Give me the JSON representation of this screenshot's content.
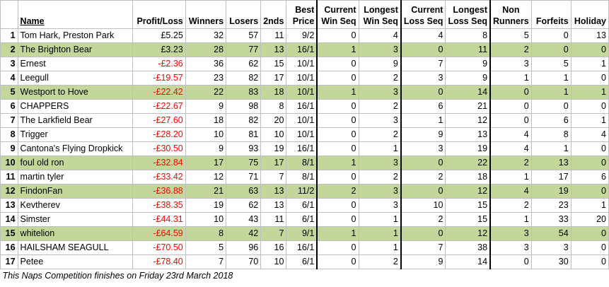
{
  "headers": {
    "rank": "",
    "name": "Name",
    "profit_loss": "Profit/Loss",
    "winners": "Winners",
    "losers": "Losers",
    "seconds": "2nds",
    "best_price": [
      "Best",
      "Price"
    ],
    "current_win_seq": [
      "Current",
      "Win Seq"
    ],
    "longest_win_seq": [
      "Longest",
      "Win Seq"
    ],
    "current_loss_seq": [
      "Current",
      "Loss Seq"
    ],
    "longest_loss_seq": [
      "Longest",
      "Loss Seq"
    ],
    "non_runners": [
      "Non",
      "Runners"
    ],
    "forfeits": "Forfeits",
    "holiday": "Holiday"
  },
  "rows": [
    {
      "rank": "1",
      "name": "Tom Hark, Preston Park",
      "pl": "£5.25",
      "winners": "32",
      "losers": "57",
      "seconds": "11",
      "best": "9/2",
      "cws": "0",
      "lws": "4",
      "cls": "4",
      "lls": "8",
      "nr": "5",
      "forfeits": "0",
      "holiday": "13",
      "highlight": false,
      "negative": false
    },
    {
      "rank": "2",
      "name": "The Brighton Bear",
      "pl": "£3.23",
      "winners": "28",
      "losers": "77",
      "seconds": "13",
      "best": "16/1",
      "cws": "1",
      "lws": "3",
      "cls": "0",
      "lls": "11",
      "nr": "2",
      "forfeits": "0",
      "holiday": "0",
      "highlight": true,
      "negative": false
    },
    {
      "rank": "3",
      "name": "Ernest",
      "pl": "-£2.36",
      "winners": "36",
      "losers": "62",
      "seconds": "15",
      "best": "10/1",
      "cws": "0",
      "lws": "9",
      "cls": "7",
      "lls": "9",
      "nr": "3",
      "forfeits": "5",
      "holiday": "1",
      "highlight": false,
      "negative": true
    },
    {
      "rank": "4",
      "name": "Leegull",
      "pl": "-£19.57",
      "winners": "23",
      "losers": "82",
      "seconds": "17",
      "best": "10/1",
      "cws": "0",
      "lws": "2",
      "cls": "3",
      "lls": "9",
      "nr": "1",
      "forfeits": "1",
      "holiday": "0",
      "highlight": false,
      "negative": true
    },
    {
      "rank": "5",
      "name": "Westport to Hove",
      "pl": "-£22.42",
      "winners": "22",
      "losers": "83",
      "seconds": "18",
      "best": "10/1",
      "cws": "1",
      "lws": "3",
      "cls": "0",
      "lls": "14",
      "nr": "0",
      "forfeits": "1",
      "holiday": "1",
      "highlight": true,
      "negative": true
    },
    {
      "rank": "6",
      "name": "CHAPPERS",
      "pl": "-£22.67",
      "winners": "9",
      "losers": "98",
      "seconds": "8",
      "best": "16/1",
      "cws": "0",
      "lws": "2",
      "cls": "6",
      "lls": "21",
      "nr": "0",
      "forfeits": "0",
      "holiday": "0",
      "highlight": false,
      "negative": true
    },
    {
      "rank": "7",
      "name": "The Larkfield Bear",
      "pl": "-£27.60",
      "winners": "18",
      "losers": "82",
      "seconds": "20",
      "best": "10/1",
      "cws": "0",
      "lws": "3",
      "cls": "1",
      "lls": "12",
      "nr": "0",
      "forfeits": "6",
      "holiday": "1",
      "highlight": false,
      "negative": true
    },
    {
      "rank": "8",
      "name": "Trigger",
      "pl": "-£28.20",
      "winners": "10",
      "losers": "81",
      "seconds": "10",
      "best": "10/1",
      "cws": "0",
      "lws": "2",
      "cls": "9",
      "lls": "13",
      "nr": "4",
      "forfeits": "8",
      "holiday": "4",
      "highlight": false,
      "negative": true
    },
    {
      "rank": "9",
      "name": "Cantona's Flying Dropkick",
      "pl": "-£30.50",
      "winners": "9",
      "losers": "93",
      "seconds": "19",
      "best": "16/1",
      "cws": "0",
      "lws": "1",
      "cls": "3",
      "lls": "19",
      "nr": "4",
      "forfeits": "1",
      "holiday": "0",
      "highlight": false,
      "negative": true
    },
    {
      "rank": "10",
      "name": "foul old ron",
      "pl": "-£32.84",
      "winners": "17",
      "losers": "75",
      "seconds": "17",
      "best": "8/1",
      "cws": "1",
      "lws": "3",
      "cls": "0",
      "lls": "22",
      "nr": "2",
      "forfeits": "13",
      "holiday": "0",
      "highlight": true,
      "negative": true
    },
    {
      "rank": "11",
      "name": "martin tyler",
      "pl": "-£33.42",
      "winners": "12",
      "losers": "71",
      "seconds": "7",
      "best": "8/1",
      "cws": "0",
      "lws": "2",
      "cls": "2",
      "lls": "18",
      "nr": "1",
      "forfeits": "17",
      "holiday": "6",
      "highlight": false,
      "negative": true
    },
    {
      "rank": "12",
      "name": "FindonFan",
      "pl": "-£36.88",
      "winners": "21",
      "losers": "63",
      "seconds": "13",
      "best": "11/2",
      "cws": "2",
      "lws": "3",
      "cls": "0",
      "lls": "12",
      "nr": "4",
      "forfeits": "19",
      "holiday": "0",
      "highlight": true,
      "negative": true
    },
    {
      "rank": "13",
      "name": "Kevtherev",
      "pl": "-£38.35",
      "winners": "19",
      "losers": "62",
      "seconds": "13",
      "best": "6/1",
      "cws": "0",
      "lws": "3",
      "cls": "10",
      "lls": "15",
      "nr": "2",
      "forfeits": "23",
      "holiday": "1",
      "highlight": false,
      "negative": true
    },
    {
      "rank": "14",
      "name": "Simster",
      "pl": "-£44.31",
      "winners": "10",
      "losers": "43",
      "seconds": "11",
      "best": "6/1",
      "cws": "0",
      "lws": "1",
      "cls": "2",
      "lls": "15",
      "nr": "1",
      "forfeits": "33",
      "holiday": "20",
      "highlight": false,
      "negative": true
    },
    {
      "rank": "15",
      "name": "whitelion",
      "pl": "-£64.59",
      "winners": "8",
      "losers": "42",
      "seconds": "7",
      "best": "9/1",
      "cws": "1",
      "lws": "1",
      "cls": "0",
      "lls": "12",
      "nr": "3",
      "forfeits": "54",
      "holiday": "0",
      "highlight": true,
      "negative": true
    },
    {
      "rank": "16",
      "name": "HAILSHAM SEAGULL",
      "pl": "-£70.50",
      "winners": "5",
      "losers": "96",
      "seconds": "16",
      "best": "16/1",
      "cws": "0",
      "lws": "1",
      "cls": "7",
      "lls": "38",
      "nr": "3",
      "forfeits": "3",
      "holiday": "0",
      "highlight": false,
      "negative": true
    },
    {
      "rank": "17",
      "name": "Petee",
      "pl": "-£78.40",
      "winners": "7",
      "losers": "70",
      "seconds": "10",
      "best": "6/1",
      "cws": "0",
      "lws": "2",
      "cls": "9",
      "lls": "14",
      "nr": "0",
      "forfeits": "30",
      "holiday": "0",
      "highlight": false,
      "negative": true
    }
  ],
  "footer": "This Naps Competition finishes on Friday 23rd March 2018",
  "colors": {
    "highlight": "#c4d79b",
    "negative": "#ff0000",
    "grid": "#bfbfbf"
  }
}
